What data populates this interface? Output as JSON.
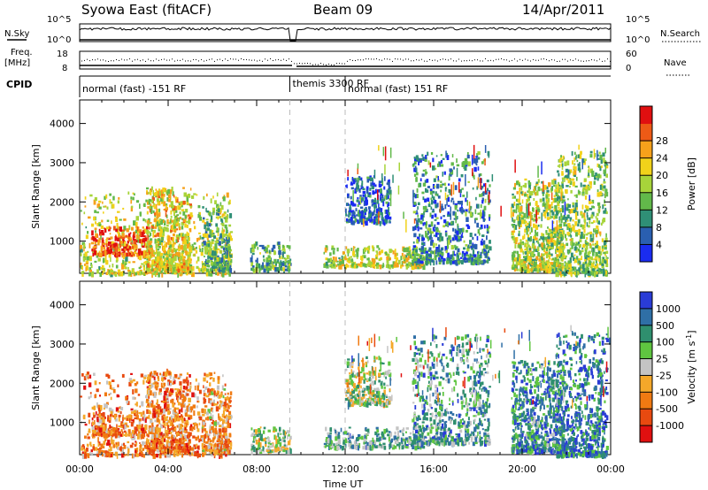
{
  "header": {
    "title": "Syowa East (fitACF)",
    "beam": "Beam 09",
    "date": "14/Apr/2011"
  },
  "strip": {
    "nsky_label": "N.Sky",
    "nsky_ticks": [
      "10^5",
      "10^0"
    ],
    "nsearch_label": "N.Search",
    "nsearch_ticks": [
      "10^5",
      "10^0"
    ],
    "freq_label_1": "Freq.",
    "freq_label_2": "[MHz]",
    "freq_ticks": [
      "18",
      "8"
    ],
    "nave_label": "Nave",
    "nave_ticks": [
      "60",
      "0"
    ],
    "cpid_label": "CPID",
    "cpid_segments": [
      {
        "label": "normal (fast) -151 RF",
        "start_hour": 0.0,
        "end_hour": 9.5
      },
      {
        "label": "themis 3300 RF",
        "start_hour": 9.5,
        "end_hour": 12.0
      },
      {
        "label": "normal (fast) 151 RF",
        "start_hour": 12.0,
        "end_hour": 24.0
      }
    ]
  },
  "chart_data": [
    {
      "type": "heatmap",
      "name": "power",
      "ylabel": "Slant Range [km]",
      "yticks": [
        1000,
        2000,
        3000,
        4000
      ],
      "ylim": [
        180,
        4600
      ],
      "xlim": [
        0,
        24
      ],
      "colorbar": {
        "label": "Power [dB]",
        "ticks": [
          "4",
          "8",
          "12",
          "16",
          "20",
          "24",
          "28"
        ],
        "colors": [
          "#1a2cf0",
          "#2a5fb0",
          "#2f8f76",
          "#62b94a",
          "#a7d43a",
          "#f1d21a",
          "#f6a11b",
          "#ed5a16",
          "#e00f10"
        ]
      },
      "patches": [
        {
          "x": [
            0.0,
            6.8
          ],
          "y": [
            200,
            2300
          ],
          "level": 0.55
        },
        {
          "x": [
            0.5,
            3.0
          ],
          "y": [
            700,
            1400
          ],
          "level": 0.85
        },
        {
          "x": [
            3.0,
            5.0
          ],
          "y": [
            300,
            2400
          ],
          "level": 0.6
        },
        {
          "x": [
            5.5,
            6.8
          ],
          "y": [
            300,
            1900
          ],
          "level": 0.4
        },
        {
          "x": [
            7.7,
            9.5
          ],
          "y": [
            300,
            1000
          ],
          "level": 0.35
        },
        {
          "x": [
            11.0,
            15.5
          ],
          "y": [
            400,
            900
          ],
          "level": 0.55
        },
        {
          "x": [
            12.0,
            14.0
          ],
          "y": [
            1500,
            2700
          ],
          "level": 0.15
        },
        {
          "x": [
            15.0,
            18.5
          ],
          "y": [
            500,
            3300
          ],
          "level": 0.25
        },
        {
          "x": [
            19.5,
            21.8
          ],
          "y": [
            300,
            2600
          ],
          "level": 0.5
        },
        {
          "x": [
            21.5,
            23.8
          ],
          "y": [
            200,
            3300
          ],
          "level": 0.45
        }
      ]
    },
    {
      "type": "heatmap",
      "name": "velocity",
      "ylabel": "Slant Range [km]",
      "xlabel": "Time UT",
      "xticks": [
        "00:00",
        "04:00",
        "08:00",
        "12:00",
        "16:00",
        "20:00",
        "00:00"
      ],
      "yticks": [
        1000,
        2000,
        3000,
        4000
      ],
      "ylim": [
        180,
        4600
      ],
      "xlim": [
        0,
        24
      ],
      "colorbar": {
        "label": "Velocity [m s",
        "label_sup": "-1",
        "label_end": "]",
        "ticks": [
          "1000",
          "500",
          "100",
          "25",
          "-25",
          "-100",
          "-500",
          "-1000"
        ],
        "colors": [
          "#2a3cd6",
          "#2f6fa6",
          "#2f8f6e",
          "#5fc540",
          "#c4c4c4",
          "#f4a82a",
          "#f07a12",
          "#e84a10",
          "#e01010"
        ]
      },
      "patches": [
        {
          "x": [
            0.0,
            6.8
          ],
          "y": [
            200,
            2300
          ],
          "level": 0.7
        },
        {
          "x": [
            0.5,
            3.0
          ],
          "y": [
            700,
            1300
          ],
          "level": 0.75
        },
        {
          "x": [
            3.0,
            5.0
          ],
          "y": [
            300,
            2400
          ],
          "level": 0.72
        },
        {
          "x": [
            5.5,
            6.8
          ],
          "y": [
            300,
            1900
          ],
          "level": 0.65
        },
        {
          "x": [
            7.7,
            9.5
          ],
          "y": [
            300,
            900
          ],
          "level": 0.45
        },
        {
          "x": [
            11.0,
            15.5
          ],
          "y": [
            400,
            900
          ],
          "level": 0.32
        },
        {
          "x": [
            12.0,
            14.0
          ],
          "y": [
            1500,
            2700
          ],
          "level": 0.45
        },
        {
          "x": [
            15.0,
            18.5
          ],
          "y": [
            500,
            3300
          ],
          "level": 0.3
        },
        {
          "x": [
            19.5,
            21.8
          ],
          "y": [
            300,
            2600
          ],
          "level": 0.25
        },
        {
          "x": [
            21.5,
            23.8
          ],
          "y": [
            200,
            3300
          ],
          "level": 0.2
        }
      ]
    }
  ]
}
